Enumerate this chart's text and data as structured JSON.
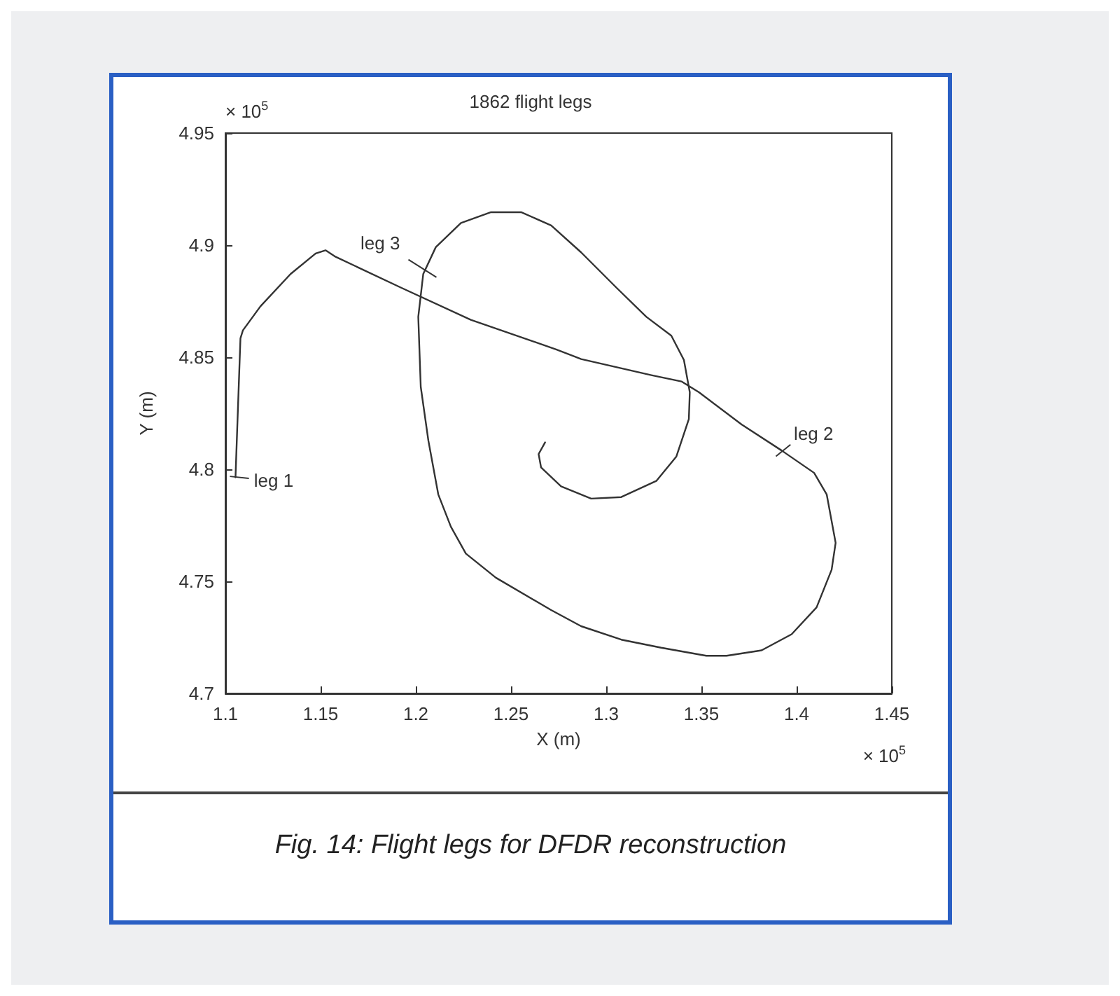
{
  "chart_data": {
    "type": "line",
    "title": "1862 flight legs",
    "xlabel": "X (m)",
    "ylabel": "Y (m)",
    "x": [
      1.1053,
      1.1079,
      1.1092,
      1.1184,
      1.1342,
      1.1474,
      1.1526,
      1.1579,
      1.1921,
      1.2289,
      1.2737,
      1.2868,
      1.3237,
      1.3395,
      1.3487,
      1.3711,
      1.3921,
      1.4092,
      1.4158,
      1.4205,
      1.4184,
      1.4105,
      1.3974,
      1.3816,
      1.3632,
      1.3526,
      1.3289,
      1.3079,
      1.2868,
      1.2711,
      1.2421,
      1.2263,
      1.2184,
      1.2118,
      1.2066,
      1.2026,
      1.2013,
      1.2039,
      1.2105,
      1.2237,
      1.2395,
      1.2553,
      1.2711,
      1.2868,
      1.3053,
      1.3211,
      1.3342,
      1.3408,
      1.3439,
      1.3434,
      1.3368,
      1.3263,
      1.3079,
      1.2921,
      1.2763,
      1.2658,
      1.2645,
      1.2679
    ],
    "series": [
      {
        "color": "#333333",
        "values": [
          4.7964,
          4.8584,
          4.862,
          4.8727,
          4.8871,
          4.8963,
          4.8977,
          4.8948,
          4.8811,
          4.8667,
          4.8535,
          4.8492,
          4.842,
          4.8392,
          4.8344,
          4.82,
          4.8084,
          4.7984,
          4.7888,
          4.7672,
          4.7552,
          4.7384,
          4.7264,
          4.7192,
          4.7168,
          4.7168,
          4.7204,
          4.724,
          4.73,
          4.7372,
          4.7516,
          4.7624,
          4.7744,
          4.7888,
          4.8128,
          4.8368,
          4.868,
          4.8871,
          4.8991,
          4.9099,
          4.9147,
          4.9147,
          4.9088,
          4.8968,
          4.8811,
          4.868,
          4.8596,
          4.8488,
          4.8344,
          4.8224,
          4.8056,
          4.7948,
          4.7876,
          4.7869,
          4.7924,
          4.8008,
          4.8068,
          4.812
        ]
      }
    ],
    "xlim": [
      1.1,
      1.45
    ],
    "xticks": [
      1.1,
      1.15,
      1.2,
      1.25,
      1.3,
      1.35,
      1.4,
      1.45
    ],
    "ylim": [
      4.7,
      4.95
    ],
    "yticks": [
      4.7,
      4.75,
      4.8,
      4.85,
      4.9,
      4.95
    ],
    "grid": false,
    "marker": "none",
    "line_style": "solid",
    "annotations": [
      {
        "text": "leg 1",
        "x": 1.1053,
        "y": 4.7964
      },
      {
        "text": "leg 2",
        "x": 1.3921,
        "y": 4.8084
      },
      {
        "text": "leg 3",
        "x": 1.2079,
        "y": 4.8896
      },
      "× 10$^{5}$",
      "× 10$^{5}$",
      "Fig. 14: Flight legs for DFDR reconstruction"
    ]
  }
}
